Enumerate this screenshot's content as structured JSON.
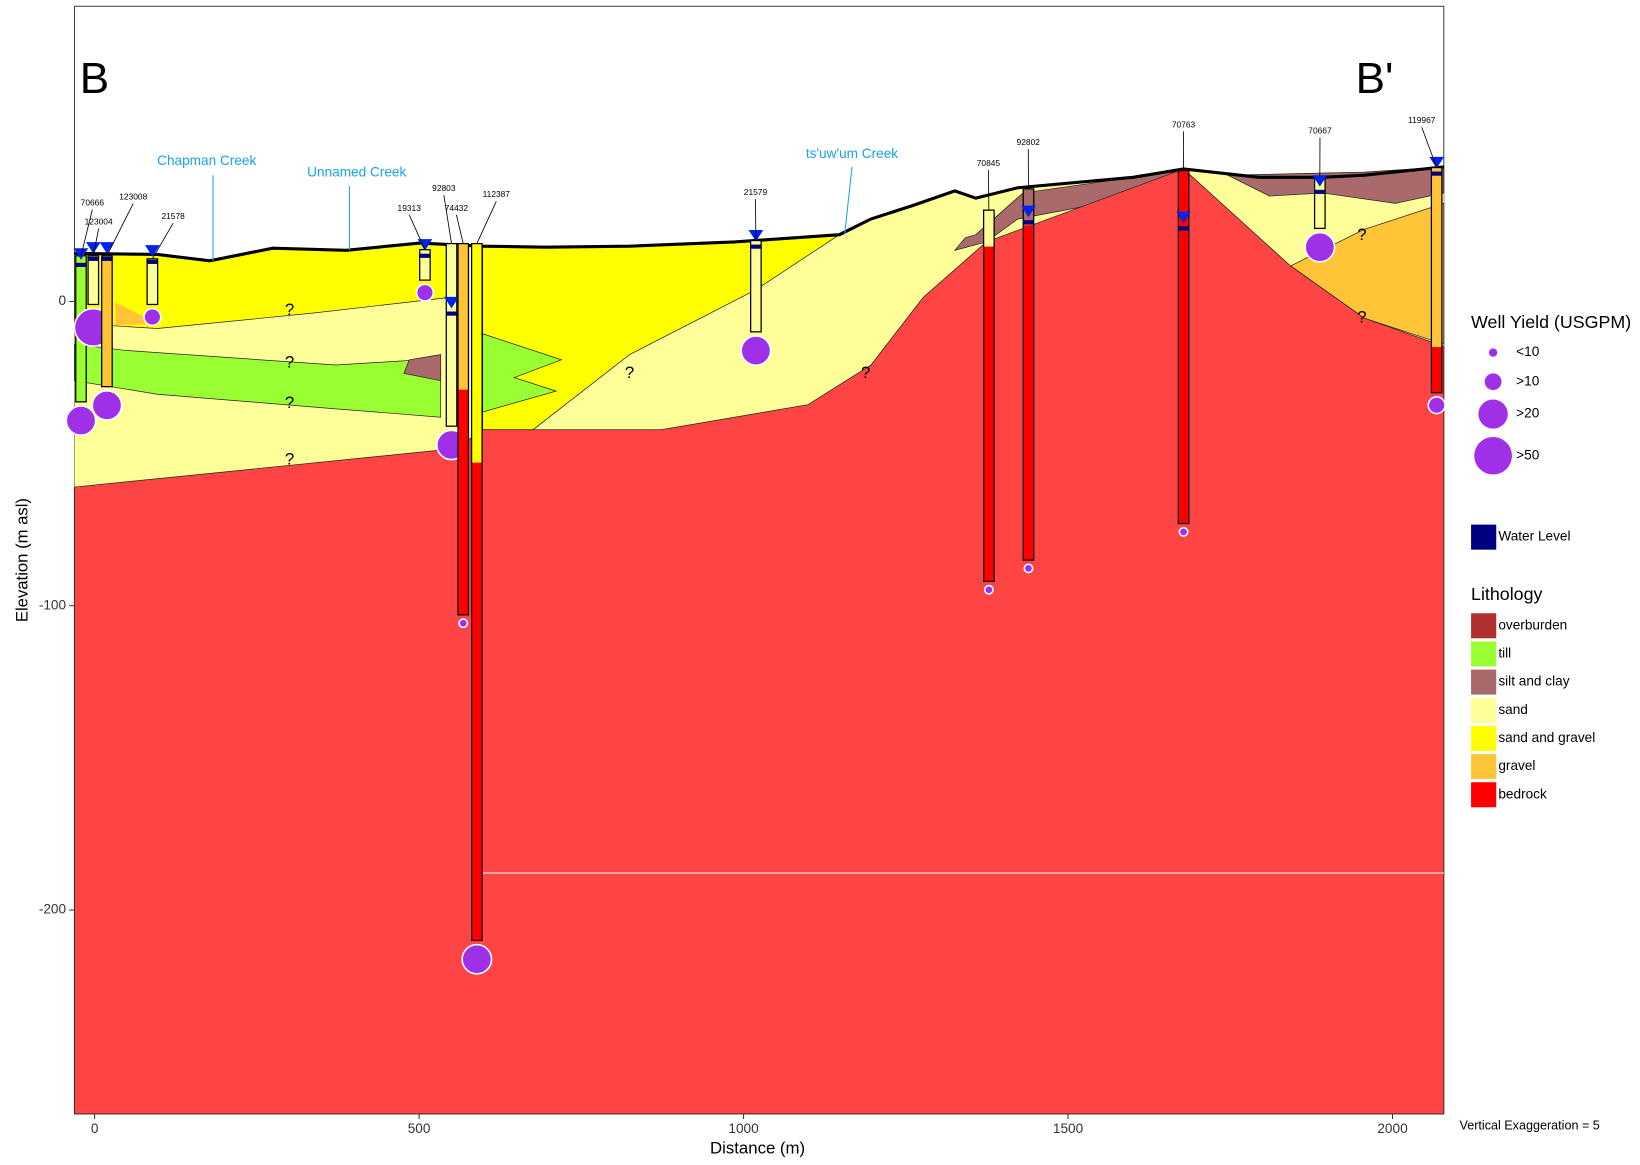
{
  "chart_data": {
    "type": "cross-section",
    "xlabel": "Distance (m)",
    "ylabel": "Elevation (m asl)",
    "xlim": [
      -31,
      2079
    ],
    "ylim": [
      -267,
      97
    ],
    "xticks": [
      0,
      500,
      1000,
      1500,
      2000
    ],
    "yticks": [
      -200,
      -100,
      0
    ],
    "section_start": "B",
    "section_end": "B'",
    "creeks": [
      "Chapman Creek",
      "Unnamed Creek",
      "ts'uw'um Creek"
    ],
    "uncertain": [
      "?",
      "?",
      "?",
      "?",
      "?",
      "?",
      "?",
      "?"
    ],
    "note": "Vertical Exaggeration = 5",
    "wells": [
      {
        "id": "70666",
        "x": -21,
        "top": 15,
        "bottom": -33,
        "water": 12,
        "color": "#99ff33",
        "bedrock": null,
        "yield": ">20"
      },
      {
        "id": "123004",
        "x": -2,
        "top": 15,
        "bottom": -1,
        "water": 14,
        "color": "#ffff99",
        "bedrock": null,
        "yield": ">50"
      },
      {
        "id": "123008",
        "x": 19,
        "top": 15,
        "bottom": -28,
        "water": 14,
        "color": "#ffc438",
        "bedrock": null,
        "yield": ">20"
      },
      {
        "id": "21578",
        "x": 89,
        "top": 14,
        "bottom": -1,
        "water": 13,
        "color": "#ffff99",
        "bedrock": null,
        "yield": ">10"
      },
      {
        "id": "19313",
        "x": 509,
        "top": 17,
        "bottom": 7,
        "water": 15,
        "color": "#ffff99",
        "bedrock": null,
        "yield": ">10"
      },
      {
        "id": "92803",
        "x": 550,
        "top": 19,
        "bottom": -41,
        "water": -4,
        "color": "#ffff99",
        "bedrock": null,
        "yield": ">20"
      },
      {
        "id": "74432",
        "x": 568,
        "top": 19,
        "bottom": -103,
        "water": null,
        "color": "#ffc438",
        "bedrock": -29,
        "yield": "<10"
      },
      {
        "id": "112387",
        "x": 589,
        "top": 19,
        "bottom": -210,
        "water": null,
        "color": "#ffff00",
        "bedrock": -53,
        "yield": ">20"
      },
      {
        "id": "21579",
        "x": 1019,
        "top": 20,
        "bottom": -10,
        "water": 18,
        "color": "#ffff99",
        "bedrock": null,
        "yield": ">20"
      },
      {
        "id": "70845",
        "x": 1378,
        "top": 30,
        "bottom": -92,
        "water": null,
        "color": "#ffff99",
        "bedrock": 18,
        "yield": "<10"
      },
      {
        "id": "92802",
        "x": 1439,
        "top": 37,
        "bottom": -85,
        "water": 26,
        "color": "#a86a6a",
        "bedrock": 25,
        "yield": "<10"
      },
      {
        "id": "70763",
        "x": 1678,
        "top": 43,
        "bottom": -73,
        "water": 24,
        "color": "#ff0000",
        "bedrock": 43,
        "yield": "<10"
      },
      {
        "id": "70667",
        "x": 1888,
        "top": 41,
        "bottom": 24,
        "water": 36,
        "color": "#ffff99",
        "bedrock": null,
        "yield": ">20"
      },
      {
        "id": "119967",
        "x": 2068,
        "top": 44,
        "bottom": -30,
        "water": 42,
        "color": "#ffc438",
        "bedrock": -15,
        "yield": ">10"
      }
    ],
    "yield_legend": {
      "title": "Well Yield (USGPM)",
      "items": [
        "<10",
        ">10",
        ">20",
        ">50"
      ],
      "color": "#a030e8"
    },
    "water_legend": {
      "label": "Water Level",
      "color": "#000080"
    },
    "lithology_legend": {
      "title": "Lithology",
      "items": [
        {
          "name": "overburden",
          "color": "#b03030"
        },
        {
          "name": "till",
          "color": "#99ff33"
        },
        {
          "name": "silt and clay",
          "color": "#a86a6a"
        },
        {
          "name": "sand",
          "color": "#ffff99"
        },
        {
          "name": "sand and gravel",
          "color": "#ffff00"
        },
        {
          "name": "gravel",
          "color": "#ffc438"
        },
        {
          "name": "bedrock",
          "color": "#ff0000"
        }
      ]
    }
  }
}
